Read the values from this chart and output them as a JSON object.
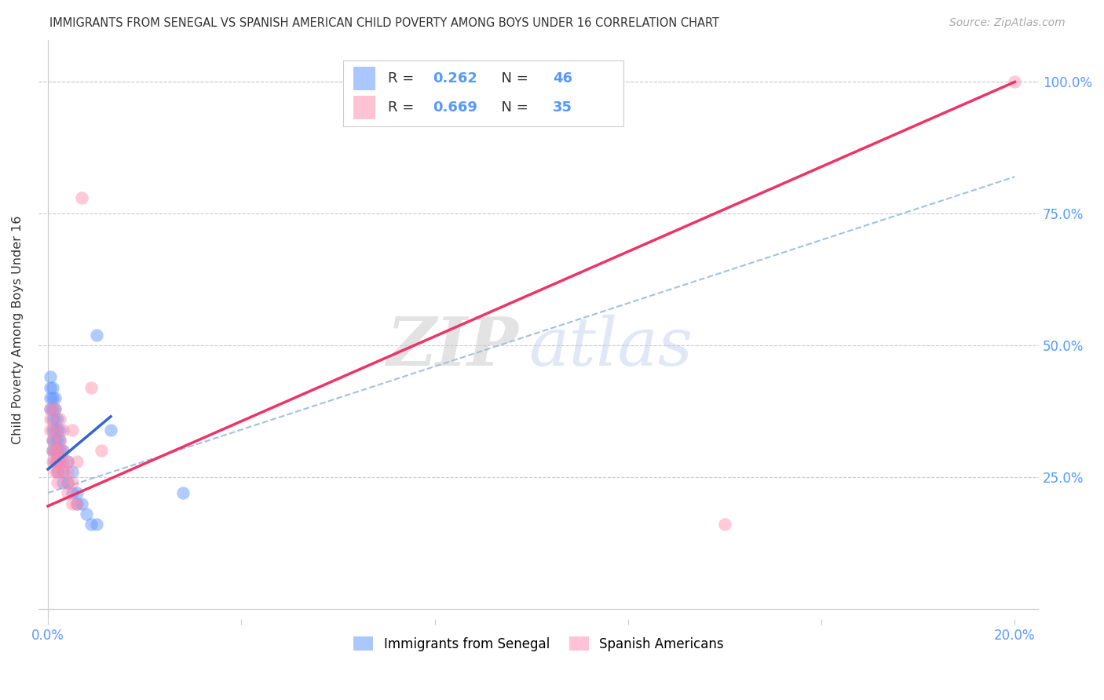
{
  "title": "IMMIGRANTS FROM SENEGAL VS SPANISH AMERICAN CHILD POVERTY AMONG BOYS UNDER 16 CORRELATION CHART",
  "source": "Source: ZipAtlas.com",
  "ylabel": "Child Poverty Among Boys Under 16",
  "background_color": "#ffffff",
  "watermark": "ZIPatlas",
  "blue_color": "#6699ff",
  "pink_color": "#ff88aa",
  "blue_scatter": [
    [
      0.0005,
      0.38
    ],
    [
      0.0005,
      0.4
    ],
    [
      0.0005,
      0.42
    ],
    [
      0.0005,
      0.44
    ],
    [
      0.001,
      0.3
    ],
    [
      0.001,
      0.32
    ],
    [
      0.001,
      0.34
    ],
    [
      0.001,
      0.36
    ],
    [
      0.001,
      0.38
    ],
    [
      0.001,
      0.4
    ],
    [
      0.001,
      0.42
    ],
    [
      0.0015,
      0.28
    ],
    [
      0.0015,
      0.3
    ],
    [
      0.0015,
      0.32
    ],
    [
      0.0015,
      0.34
    ],
    [
      0.0015,
      0.36
    ],
    [
      0.0015,
      0.38
    ],
    [
      0.0015,
      0.4
    ],
    [
      0.002,
      0.26
    ],
    [
      0.002,
      0.28
    ],
    [
      0.002,
      0.3
    ],
    [
      0.002,
      0.32
    ],
    [
      0.002,
      0.34
    ],
    [
      0.002,
      0.36
    ],
    [
      0.0025,
      0.28
    ],
    [
      0.0025,
      0.3
    ],
    [
      0.0025,
      0.32
    ],
    [
      0.0025,
      0.34
    ],
    [
      0.003,
      0.24
    ],
    [
      0.003,
      0.26
    ],
    [
      0.003,
      0.3
    ],
    [
      0.004,
      0.24
    ],
    [
      0.004,
      0.28
    ],
    [
      0.005,
      0.22
    ],
    [
      0.005,
      0.26
    ],
    [
      0.006,
      0.2
    ],
    [
      0.006,
      0.22
    ],
    [
      0.007,
      0.2
    ],
    [
      0.008,
      0.18
    ],
    [
      0.009,
      0.16
    ],
    [
      0.01,
      0.16
    ],
    [
      0.01,
      0.52
    ],
    [
      0.013,
      0.34
    ],
    [
      0.028,
      0.22
    ]
  ],
  "pink_scatter": [
    [
      0.0005,
      0.34
    ],
    [
      0.0005,
      0.36
    ],
    [
      0.0005,
      0.38
    ],
    [
      0.001,
      0.28
    ],
    [
      0.001,
      0.3
    ],
    [
      0.001,
      0.32
    ],
    [
      0.0015,
      0.26
    ],
    [
      0.0015,
      0.28
    ],
    [
      0.0015,
      0.3
    ],
    [
      0.0015,
      0.34
    ],
    [
      0.0015,
      0.38
    ],
    [
      0.002,
      0.24
    ],
    [
      0.002,
      0.26
    ],
    [
      0.002,
      0.28
    ],
    [
      0.002,
      0.3
    ],
    [
      0.0025,
      0.28
    ],
    [
      0.0025,
      0.32
    ],
    [
      0.0025,
      0.36
    ],
    [
      0.003,
      0.26
    ],
    [
      0.003,
      0.28
    ],
    [
      0.003,
      0.3
    ],
    [
      0.003,
      0.34
    ],
    [
      0.004,
      0.22
    ],
    [
      0.004,
      0.24
    ],
    [
      0.004,
      0.26
    ],
    [
      0.004,
      0.28
    ],
    [
      0.005,
      0.2
    ],
    [
      0.005,
      0.24
    ],
    [
      0.005,
      0.34
    ],
    [
      0.006,
      0.2
    ],
    [
      0.006,
      0.28
    ],
    [
      0.007,
      0.78
    ],
    [
      0.009,
      0.42
    ],
    [
      0.011,
      0.3
    ],
    [
      0.14,
      0.16
    ],
    [
      0.2,
      1.0
    ]
  ],
  "blue_line_x": [
    0.0,
    0.013
  ],
  "blue_line_y": [
    0.265,
    0.365
  ],
  "pink_line_x": [
    0.0,
    0.2
  ],
  "pink_line_y": [
    0.195,
    1.0
  ],
  "dashed_line_x": [
    0.0,
    0.2
  ],
  "dashed_line_y": [
    0.22,
    0.82
  ],
  "xlim": [
    -0.002,
    0.205
  ],
  "ylim": [
    -0.02,
    1.08
  ],
  "ytick_positions": [
    0.0,
    0.25,
    0.5,
    0.75,
    1.0
  ],
  "ytick_labels": [
    "",
    "25.0%",
    "50.0%",
    "75.0%",
    "100.0%"
  ],
  "xtick_positions": [
    0.0,
    0.04,
    0.08,
    0.12,
    0.16,
    0.2
  ],
  "xtick_labels": [
    "0.0%",
    "",
    "",
    "",
    "",
    "20.0%"
  ]
}
